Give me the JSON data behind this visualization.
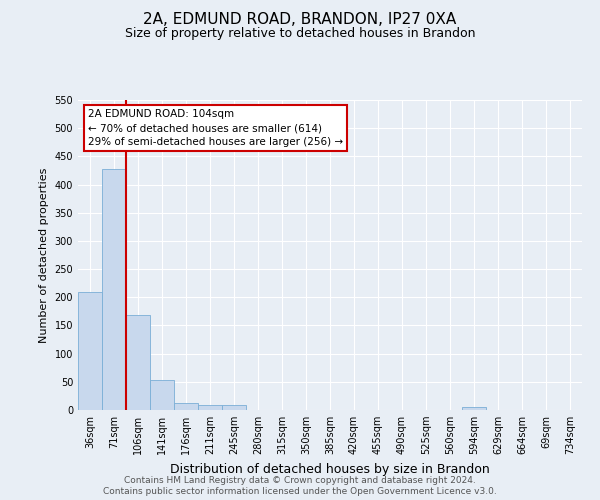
{
  "title": "2A, EDMUND ROAD, BRANDON, IP27 0XA",
  "subtitle": "Size of property relative to detached houses in Brandon",
  "xlabel": "Distribution of detached houses by size in Brandon",
  "ylabel": "Number of detached properties",
  "bar_color": "#c8d8ed",
  "bar_edge_color": "#7aaed6",
  "categories": [
    "36sqm",
    "71sqm",
    "106sqm",
    "141sqm",
    "176sqm",
    "211sqm",
    "245sqm",
    "280sqm",
    "315sqm",
    "350sqm",
    "385sqm",
    "420sqm",
    "455sqm",
    "490sqm",
    "525sqm",
    "560sqm",
    "594sqm",
    "629sqm",
    "664sqm",
    "69sqm",
    "734sqm"
  ],
  "values": [
    209,
    428,
    169,
    53,
    13,
    8,
    8,
    0,
    0,
    0,
    0,
    0,
    0,
    0,
    0,
    0,
    5,
    0,
    0,
    0,
    0
  ],
  "ylim": [
    0,
    550
  ],
  "yticks": [
    0,
    50,
    100,
    150,
    200,
    250,
    300,
    350,
    400,
    450,
    500,
    550
  ],
  "vline_x": 1.5,
  "vline_color": "#cc0000",
  "annotation_title": "2A EDMUND ROAD: 104sqm",
  "annotation_line1": "← 70% of detached houses are smaller (614)",
  "annotation_line2": "29% of semi-detached houses are larger (256) →",
  "annotation_box_color": "#ffffff",
  "annotation_box_edge_color": "#cc0000",
  "footnote1": "Contains HM Land Registry data © Crown copyright and database right 2024.",
  "footnote2": "Contains public sector information licensed under the Open Government Licence v3.0.",
  "background_color": "#e8eef5",
  "grid_color": "#ffffff",
  "title_fontsize": 11,
  "subtitle_fontsize": 9,
  "ylabel_fontsize": 8,
  "xlabel_fontsize": 9,
  "tick_fontsize": 7,
  "annotation_fontsize": 7.5,
  "footnote_fontsize": 6.5
}
